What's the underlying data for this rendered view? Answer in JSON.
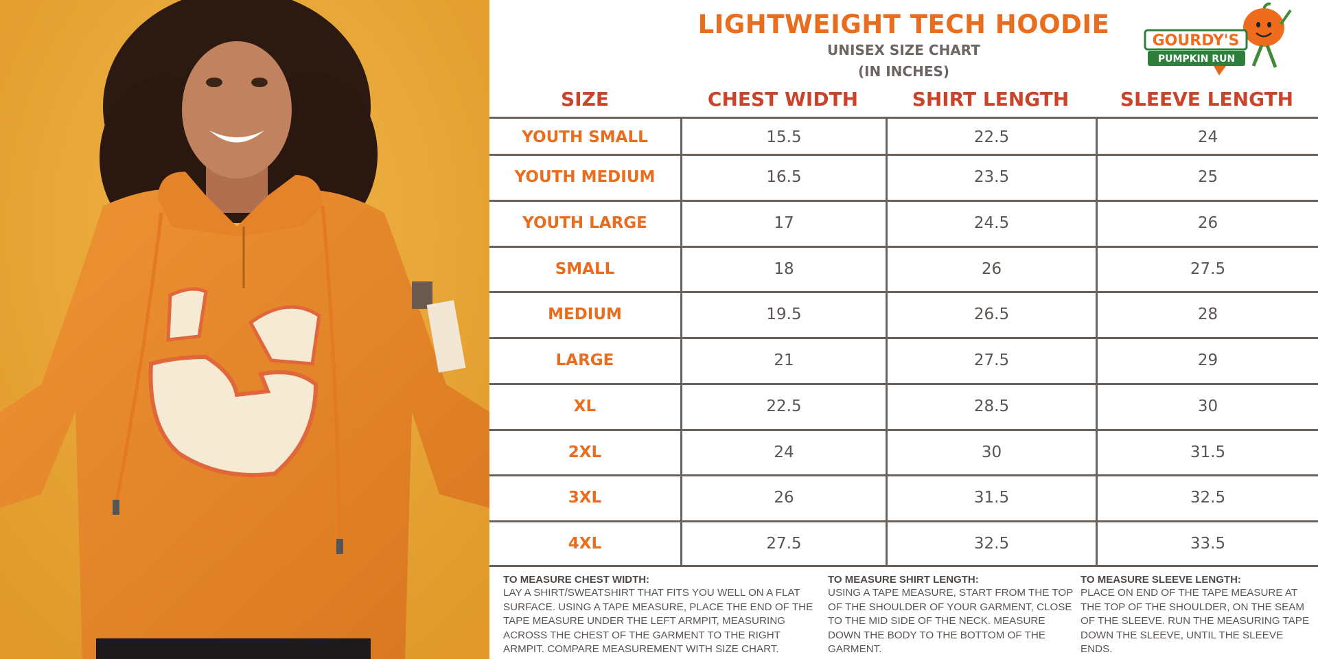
{
  "header": {
    "title": "LIGHTWEIGHT TECH HOODIE",
    "subtitle_line1": "UNISEX SIZE CHART",
    "subtitle_line2": "(IN INCHES)"
  },
  "logo": {
    "brand_line1": "GOURDY'S",
    "brand_line2": "PUMPKIN RUN",
    "icon": "pumpkin-mascot-icon"
  },
  "table": {
    "columns": [
      "SIZE",
      "CHEST WIDTH",
      "SHIRT LENGTH",
      "SLEEVE LENGTH"
    ],
    "rows": [
      {
        "size": "YOUTH SMALL",
        "chest": "15.5",
        "shirt": "22.5",
        "sleeve": "24"
      },
      {
        "size": "YOUTH MEDIUM",
        "chest": "16.5",
        "shirt": "23.5",
        "sleeve": "25"
      },
      {
        "size": "YOUTH LARGE",
        "chest": "17",
        "shirt": "24.5",
        "sleeve": "26"
      },
      {
        "size": "SMALL",
        "chest": "18",
        "shirt": "26",
        "sleeve": "27.5"
      },
      {
        "size": "MEDIUM",
        "chest": "19.5",
        "shirt": "26.5",
        "sleeve": "28"
      },
      {
        "size": "LARGE",
        "chest": "21",
        "shirt": "27.5",
        "sleeve": "29"
      },
      {
        "size": "XL",
        "chest": "22.5",
        "shirt": "28.5",
        "sleeve": "30"
      },
      {
        "size": "2XL",
        "chest": "24",
        "shirt": "30",
        "sleeve": "31.5"
      },
      {
        "size": "3XL",
        "chest": "26",
        "shirt": "31.5",
        "sleeve": "32.5"
      },
      {
        "size": "4XL",
        "chest": "27.5",
        "shirt": "32.5",
        "sleeve": "33.5"
      }
    ]
  },
  "instructions": {
    "chest": {
      "heading": "TO MEASURE CHEST WIDTH:",
      "text": "LAY A SHIRT/SWEATSHIRT THAT FITS YOU WELL ON A FLAT SURFACE. USING A TAPE MEASURE, PLACE THE END OF THE TAPE MEASURE UNDER THE LEFT ARMPIT, MEASURING ACROSS THE CHEST OF THE GARMENT TO THE RIGHT ARMPIT. COMPARE MEASUREMENT WITH SIZE CHART."
    },
    "shirt": {
      "heading": "TO MEASURE SHIRT LENGTH:",
      "text": "USING A TAPE MEASURE, START FROM THE TOP OF THE SHOULDER OF YOUR GARMENT, CLOSE TO THE MID SIDE OF THE NECK. MEASURE DOWN THE BODY TO THE BOTTOM OF THE GARMENT."
    },
    "sleeve": {
      "heading": "TO MEASURE SLEEVE LENGTH:",
      "text": "PLACE ON END OF THE TAPE MEASURE AT THE TOP OF THE SHOULDER, ON THE SEAM OF THE SLEEVE. RUN THE MEASURING TAPE DOWN THE SLEEVE, UNTIL THE SLEEVE ENDS."
    }
  },
  "colors": {
    "accent_orange": "#e86d1f",
    "header_red": "#c9442a",
    "text_gray": "#5b5552",
    "grid": "#6a625d",
    "photo_background": "#e9a937",
    "hoodie_orange": "#e98a2c"
  }
}
